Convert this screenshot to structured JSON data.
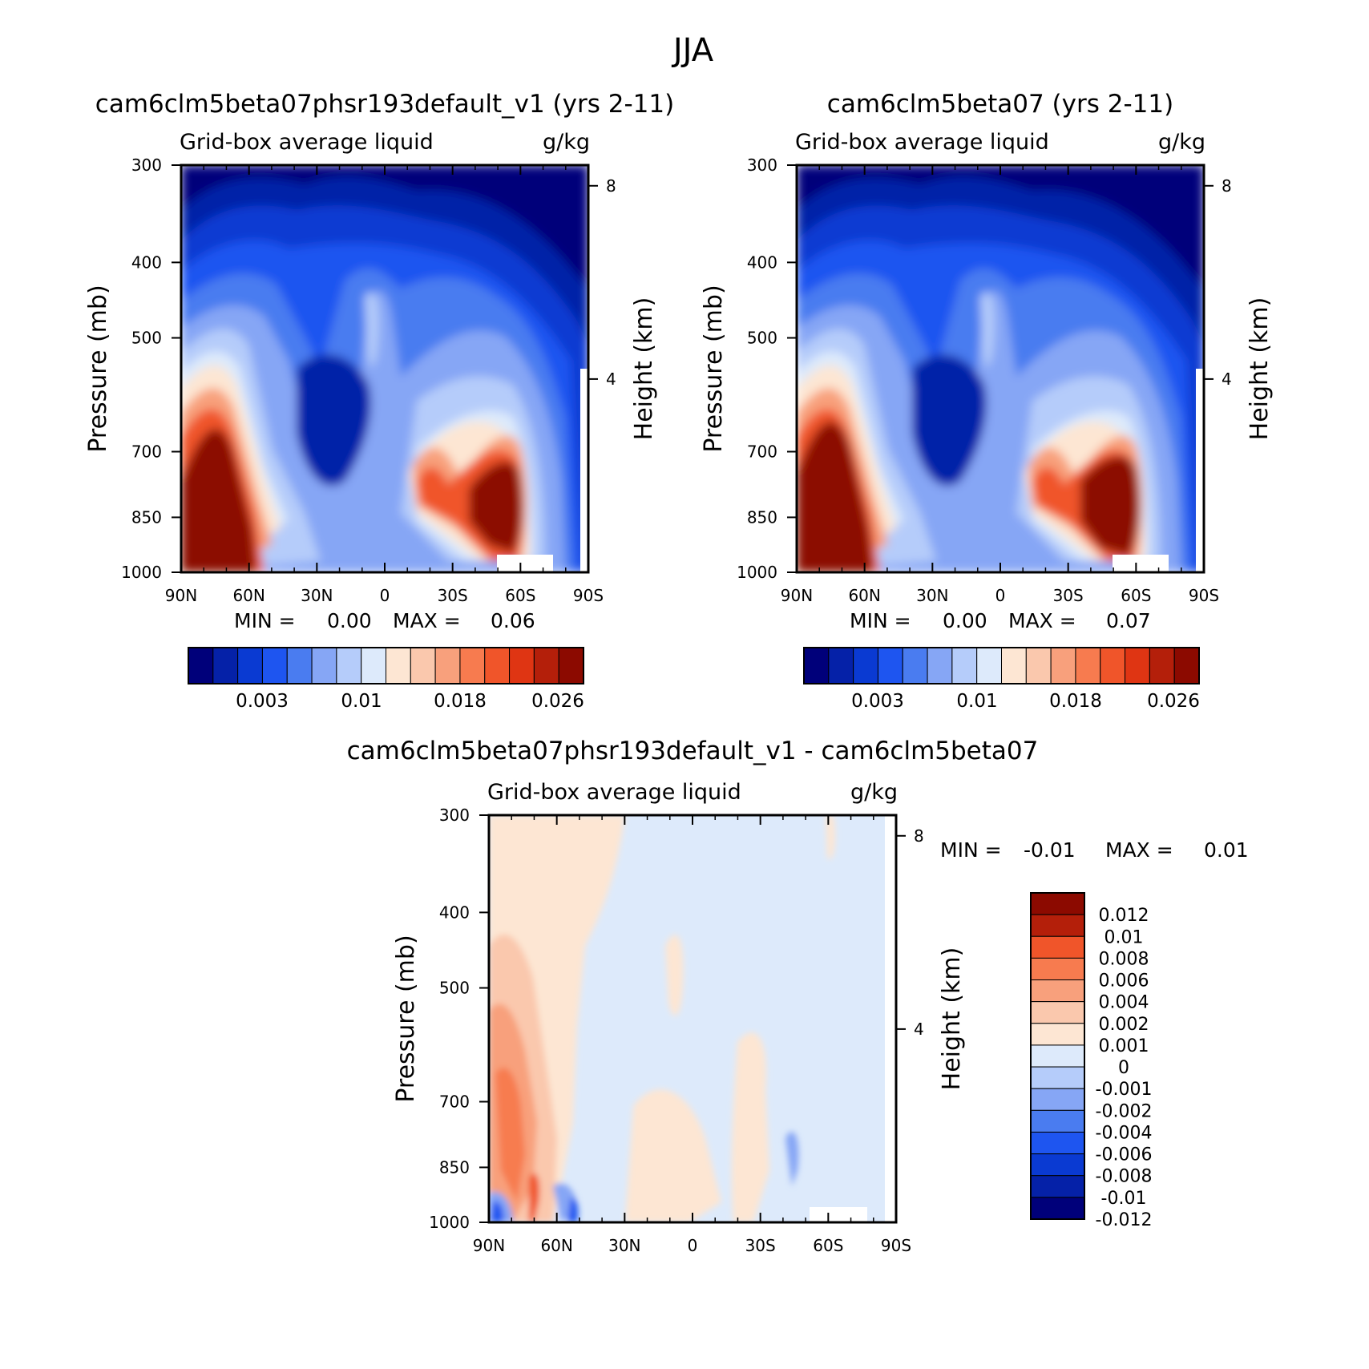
{
  "title": "JJA",
  "palette": {
    "seq": [
      "#00007a",
      "#0521a8",
      "#0a3ad2",
      "#1e55f0",
      "#4a7cf0",
      "#86a6f5",
      "#b5ccfa",
      "#ddeafb",
      "#fde6d3",
      "#fac8ad",
      "#f8a07c",
      "#f77b4f",
      "#f0552a",
      "#df3513",
      "#b41f0a",
      "#8c0a00"
    ],
    "diff": [
      "#00007a",
      "#0521a8",
      "#0a3ad2",
      "#1e55f0",
      "#4a7cf0",
      "#86a6f5",
      "#b5ccfa",
      "#ddeafb",
      "#fde6d3",
      "#fac8ad",
      "#f8a07c",
      "#f77b4f",
      "#f0552a",
      "#b41f0a",
      "#8c0a00"
    ]
  },
  "chart_data": [
    {
      "type": "heatmap",
      "title": "cam6clm5beta07phsr193default_v1 (yrs 2-11)",
      "subtitle_left": "Grid-box average liquid",
      "subtitle_right": "g/kg",
      "ylabel": "Pressure (mb)",
      "ylabel_right": "Height (km)",
      "x_ticks": [
        "90N",
        "60N",
        "30N",
        "0",
        "30S",
        "60S",
        "90S"
      ],
      "y_ticks": [
        "300",
        "400",
        "500",
        "700",
        "850",
        "1000"
      ],
      "y_ticks_right": [
        "8",
        "4"
      ],
      "min_label": "MIN =",
      "min_value": "0.00",
      "max_label": "MAX =",
      "max_value": "0.06",
      "colorbar_labels": [
        "0.003",
        "0.01",
        "0.018",
        "0.026"
      ],
      "levels": 16
    },
    {
      "type": "heatmap",
      "title": "cam6clm5beta07 (yrs 2-11)",
      "subtitle_left": "Grid-box average liquid",
      "subtitle_right": "g/kg",
      "ylabel": "Pressure (mb)",
      "ylabel_right": "Height (km)",
      "x_ticks": [
        "90N",
        "60N",
        "30N",
        "0",
        "30S",
        "60S",
        "90S"
      ],
      "y_ticks": [
        "300",
        "400",
        "500",
        "700",
        "850",
        "1000"
      ],
      "y_ticks_right": [
        "8",
        "4"
      ],
      "min_label": "MIN =",
      "min_value": "0.00",
      "max_label": "MAX =",
      "max_value": "0.07",
      "colorbar_labels": [
        "0.003",
        "0.01",
        "0.018",
        "0.026"
      ],
      "levels": 16
    },
    {
      "type": "heatmap",
      "title": "cam6clm5beta07phsr193default_v1 - cam6clm5beta07",
      "subtitle_left": "Grid-box average liquid",
      "subtitle_right": "g/kg",
      "ylabel": "Pressure (mb)",
      "ylabel_right": "Height (km)",
      "x_ticks": [
        "90N",
        "60N",
        "30N",
        "0",
        "30S",
        "60S",
        "90S"
      ],
      "y_ticks": [
        "300",
        "400",
        "500",
        "700",
        "850",
        "1000"
      ],
      "y_ticks_right": [
        "8",
        "4"
      ],
      "min_label": "MIN =",
      "min_value": "-0.01",
      "max_label": "MAX =",
      "max_value": "0.01",
      "colorbar_labels": [
        "0.012",
        "0.01",
        "0.008",
        "0.006",
        "0.004",
        "0.002",
        "0.001",
        "0",
        "-0.001",
        "-0.002",
        "-0.004",
        "-0.006",
        "-0.008",
        "-0.01",
        "-0.012"
      ],
      "levels": 15
    }
  ]
}
